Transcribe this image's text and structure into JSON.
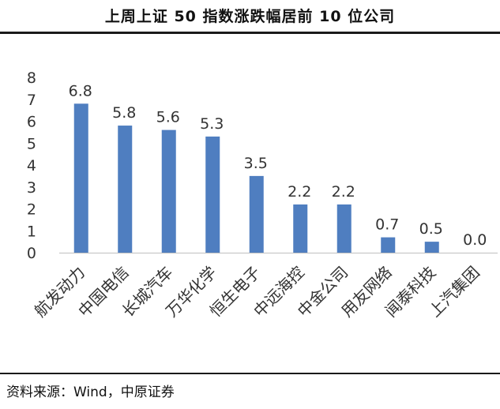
{
  "title": "上周上证 50 指数涨跌幅居前 10 位公司",
  "source": "资料来源：Wind，中原证券",
  "colors": {
    "bar": "#4F7EC0",
    "axis": "#bfbfbf",
    "text": "#333333"
  },
  "chart_data": {
    "type": "bar",
    "title": "上周上证 50 指数涨跌幅居前 10 位公司",
    "xlabel": "",
    "ylabel": "",
    "ylim": [
      0,
      8
    ],
    "yticks": [
      0,
      1,
      2,
      3,
      4,
      5,
      6,
      7,
      8
    ],
    "grid": false,
    "legend": "none",
    "categories": [
      "航发动力",
      "中国电信",
      "长城汽车",
      "万华化学",
      "恒生电子",
      "中远海控",
      "中金公司",
      "用友网络",
      "闻泰科技",
      "上汽集团"
    ],
    "values": [
      6.8,
      5.8,
      5.6,
      5.3,
      3.5,
      2.2,
      2.2,
      0.7,
      0.5,
      0.0
    ],
    "data_labels": [
      "6.8",
      "5.8",
      "5.6",
      "5.3",
      "3.5",
      "2.2",
      "2.2",
      "0.7",
      "0.5",
      "0.0"
    ]
  }
}
